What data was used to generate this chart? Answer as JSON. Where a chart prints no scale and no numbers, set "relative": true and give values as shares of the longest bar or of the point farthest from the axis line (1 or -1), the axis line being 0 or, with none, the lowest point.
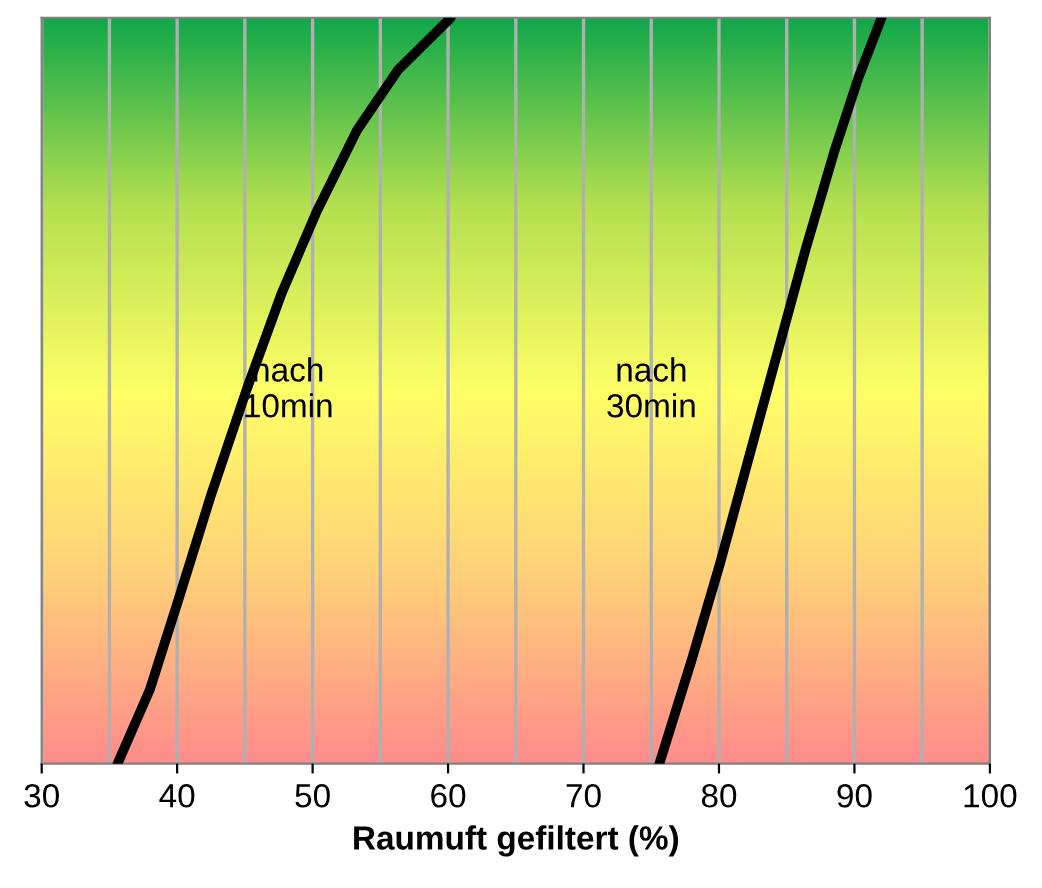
{
  "chart_data": {
    "type": "line",
    "relative": true,
    "xlabel": "Raumuft gefiltert (%)",
    "xlim": [
      30,
      100
    ],
    "xticks": [
      30,
      40,
      50,
      60,
      70,
      80,
      90,
      100
    ],
    "grid": "x",
    "legend": false,
    "marker": "none",
    "line_style": "solid",
    "series": [
      {
        "color": "#000000",
        "x": [
          35.6,
          38.0,
          40.1,
          42.5,
          45.1,
          47.7,
          50.3,
          53.3,
          56.3,
          60.2
        ],
        "values": [
          0,
          0.1,
          0.22,
          0.36,
          0.5,
          0.63,
          0.74,
          0.85,
          0.93,
          1.0
        ]
      },
      {
        "color": "#000000",
        "x": [
          75.6,
          78.0,
          80.1,
          82.2,
          84.3,
          86.4,
          88.5,
          90.3,
          92.0
        ],
        "values": [
          0,
          0.14,
          0.27,
          0.41,
          0.55,
          0.69,
          0.82,
          0.92,
          1.0
        ]
      }
    ],
    "annotations": [
      "nach\n10min",
      "nach\n30min"
    ]
  }
}
